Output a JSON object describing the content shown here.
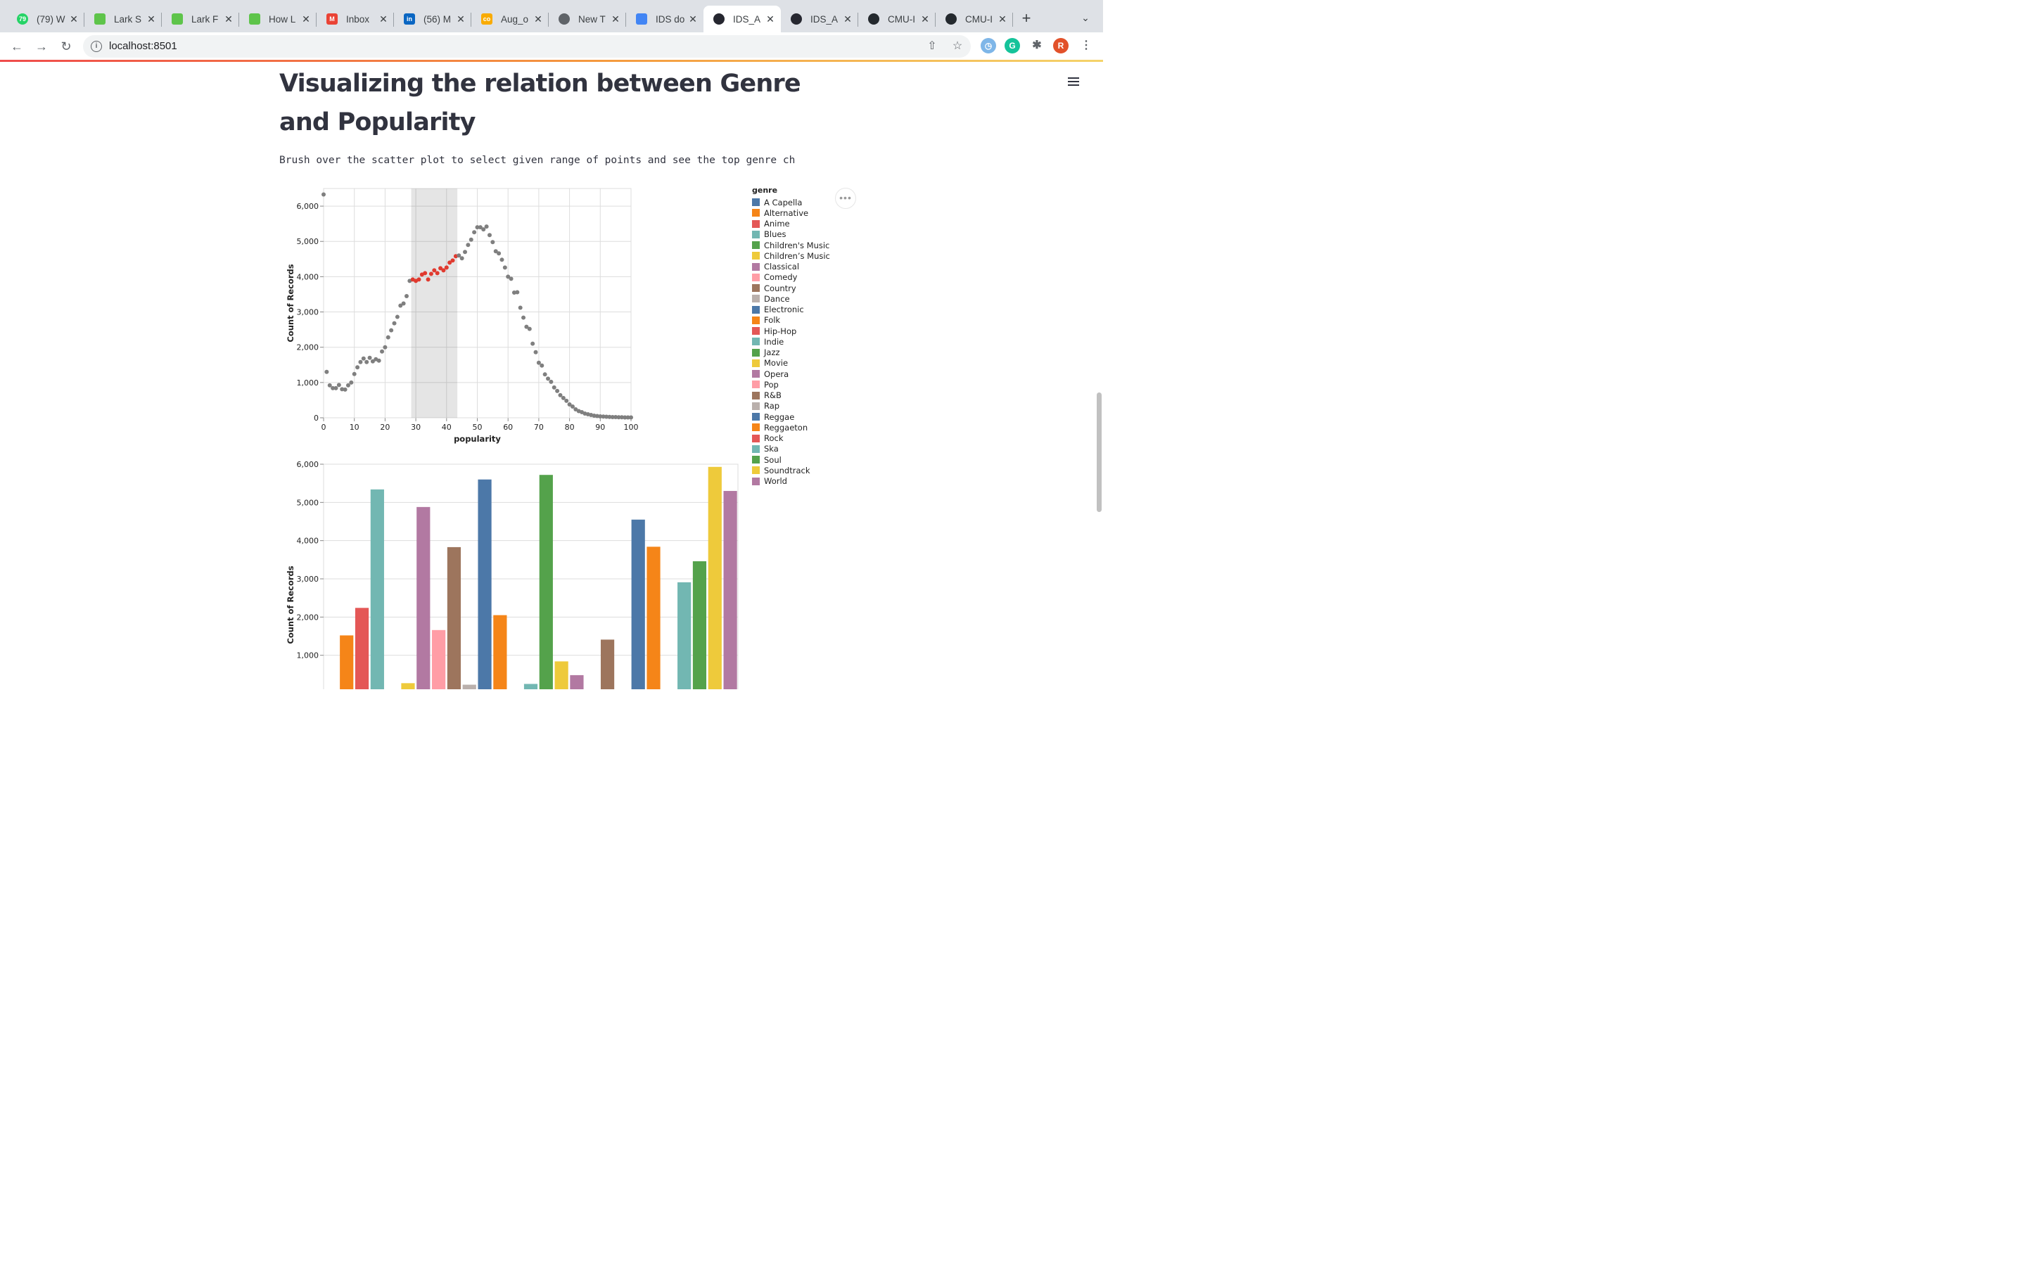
{
  "browser": {
    "tabs": [
      {
        "title": "(79) W",
        "icon": "whatsapp-icon",
        "color": "#25d366",
        "glyph": "79"
      },
      {
        "title": "Lark S",
        "icon": "lark-icon",
        "color": "#5ec44a",
        "glyph": ""
      },
      {
        "title": "Lark F",
        "icon": "lark-icon",
        "color": "#5ec44a",
        "glyph": ""
      },
      {
        "title": "How L",
        "icon": "lark-icon",
        "color": "#5ec44a",
        "glyph": ""
      },
      {
        "title": "Inbox",
        "icon": "gmail-icon",
        "color": "#ea4335",
        "glyph": "M"
      },
      {
        "title": "(56) M",
        "icon": "linkedin-icon",
        "color": "#0a66c2",
        "glyph": "in"
      },
      {
        "title": "Aug_o",
        "icon": "colab-icon",
        "color": "#f9ab00",
        "glyph": "co"
      },
      {
        "title": "New T",
        "icon": "chrome-icon",
        "color": "#5f6368",
        "glyph": ""
      },
      {
        "title": "IDS do",
        "icon": "docs-icon",
        "color": "#4285f4",
        "glyph": ""
      },
      {
        "title": "IDS_A",
        "icon": "streamlit-icon",
        "color": "#262730",
        "glyph": ""
      },
      {
        "title": "IDS_A",
        "icon": "streamlit-icon",
        "color": "#262730",
        "glyph": ""
      },
      {
        "title": "CMU-I",
        "icon": "github-icon",
        "color": "#24292e",
        "glyph": ""
      },
      {
        "title": "CMU-I",
        "icon": "github-icon",
        "color": "#24292e",
        "glyph": ""
      }
    ],
    "url": "localhost:8501",
    "avatar_letter": "R"
  },
  "page": {
    "heading": "Visualizing the relation between Genre and Popularity",
    "description": "Brush over the scatter plot to select given range of points and see the top genre ch"
  },
  "chart_data": [
    {
      "type": "scatter",
      "xlabel": "popularity",
      "ylabel": "Count of Records",
      "xlim": [
        0,
        100
      ],
      "ylim": [
        0,
        6500
      ],
      "x_ticks": [
        0,
        10,
        20,
        30,
        40,
        50,
        60,
        70,
        80,
        90,
        100
      ],
      "y_ticks": [
        0,
        1000,
        2000,
        3000,
        4000,
        5000,
        6000
      ],
      "tick_format": "thousands",
      "grid": true,
      "selection": {
        "x_range": [
          28.5,
          43.5
        ],
        "selected_color": "#e03a2f",
        "unselected_color": "#7f7f7f"
      },
      "x": [
        0,
        1,
        2,
        3,
        4,
        5,
        6,
        7,
        8,
        9,
        10,
        11,
        12,
        13,
        14,
        15,
        16,
        17,
        18,
        19,
        20,
        21,
        22,
        23,
        24,
        25,
        26,
        27,
        28,
        29,
        30,
        31,
        32,
        33,
        34,
        35,
        36,
        37,
        38,
        39,
        40,
        41,
        42,
        43,
        44,
        45,
        46,
        47,
        48,
        49,
        50,
        51,
        52,
        53,
        54,
        55,
        56,
        57,
        58,
        59,
        60,
        61,
        62,
        63,
        64,
        65,
        66,
        67,
        68,
        69,
        70,
        71,
        72,
        73,
        74,
        75,
        76,
        77,
        78,
        79,
        80,
        81,
        82,
        83,
        84,
        85,
        86,
        87,
        88,
        89,
        90,
        91,
        92,
        93,
        94,
        95,
        96,
        97,
        98,
        99,
        100
      ],
      "y": [
        6330,
        1300,
        920,
        840,
        840,
        930,
        810,
        800,
        920,
        1000,
        1240,
        1430,
        1580,
        1680,
        1580,
        1700,
        1600,
        1660,
        1620,
        1880,
        2000,
        2280,
        2480,
        2680,
        2860,
        3180,
        3240,
        3450,
        3880,
        3920,
        3880,
        3920,
        4060,
        4100,
        3920,
        4080,
        4180,
        4100,
        4240,
        4180,
        4260,
        4400,
        4460,
        4580,
        4600,
        4520,
        4700,
        4900,
        5050,
        5260,
        5400,
        5400,
        5340,
        5420,
        5180,
        4980,
        4720,
        4660,
        4480,
        4260,
        4000,
        3940,
        3550,
        3560,
        3120,
        2840,
        2580,
        2520,
        2100,
        1860,
        1560,
        1480,
        1230,
        1110,
        1020,
        860,
        760,
        640,
        560,
        480,
        380,
        320,
        240,
        190,
        160,
        120,
        100,
        80,
        60,
        50,
        40,
        35,
        30,
        25,
        20,
        20,
        15,
        15,
        10,
        10,
        10
      ]
    },
    {
      "type": "bar",
      "ylabel": "Count of Records",
      "ylim": [
        0,
        6000
      ],
      "y_ticks": [
        1000,
        2000,
        3000,
        4000,
        5000,
        6000
      ],
      "grid": true,
      "categories": [
        "A Capella",
        "Alternative",
        "Anime",
        "Blues",
        "Children's Music",
        "Children’s Music",
        "Classical",
        "Comedy",
        "Country",
        "Dance",
        "Electronic",
        "Folk",
        "Hip-Hop",
        "Indie",
        "Jazz",
        "Movie",
        "Opera",
        "Pop",
        "R&B",
        "Rap",
        "Reggae",
        "Reggaeton",
        "Rock",
        "Ska",
        "Soul",
        "Soundtrack",
        "World"
      ],
      "colors": [
        "#4c78a8",
        "#f58518",
        "#e45756",
        "#72b7b2",
        "#54a24b",
        "#eeca3b",
        "#b279a2",
        "#ff9da6",
        "#9d755d",
        "#bab0ac",
        "#4c78a8",
        "#f58518",
        "#e45756",
        "#72b7b2",
        "#54a24b",
        "#eeca3b",
        "#b279a2",
        "#ff9da6",
        "#9d755d",
        "#bab0ac",
        "#4c78a8",
        "#f58518",
        "#e45756",
        "#72b7b2",
        "#54a24b",
        "#eeca3b",
        "#b279a2"
      ],
      "values": [
        0,
        1520,
        2240,
        5340,
        0,
        270,
        4880,
        1660,
        3830,
        230,
        5600,
        2050,
        0,
        250,
        5720,
        840,
        480,
        0,
        1410,
        0,
        4550,
        3840,
        0,
        2910,
        3460,
        5930,
        5300
      ]
    }
  ],
  "legend": {
    "title": "genre"
  }
}
